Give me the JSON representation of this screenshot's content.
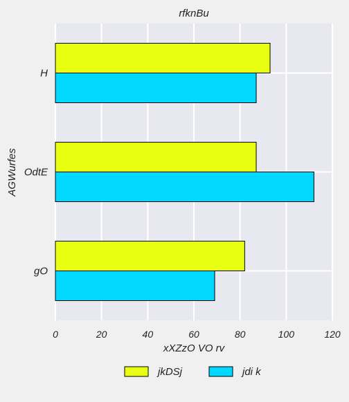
{
  "chart_data": {
    "type": "bar",
    "orientation": "horizontal",
    "title": "rfknBu",
    "xlabel": "xXZzO VO rv",
    "ylabel": "AGWurfes",
    "categories": [
      "H",
      "OdtE",
      "gO"
    ],
    "xlim": [
      0,
      120
    ],
    "xticks": [
      0,
      20,
      40,
      60,
      80,
      100,
      120
    ],
    "grid": true,
    "legend_position": "bottom",
    "series": [
      {
        "name": "jkDSj",
        "values": [
          93,
          87,
          82
        ],
        "color": "#e8ff12"
      },
      {
        "name": "jdi k",
        "values": [
          87,
          112,
          69
        ],
        "color": "#00d8ff"
      }
    ],
    "plot_background": "#e8e8f0",
    "grid_color": "#ffffff"
  }
}
